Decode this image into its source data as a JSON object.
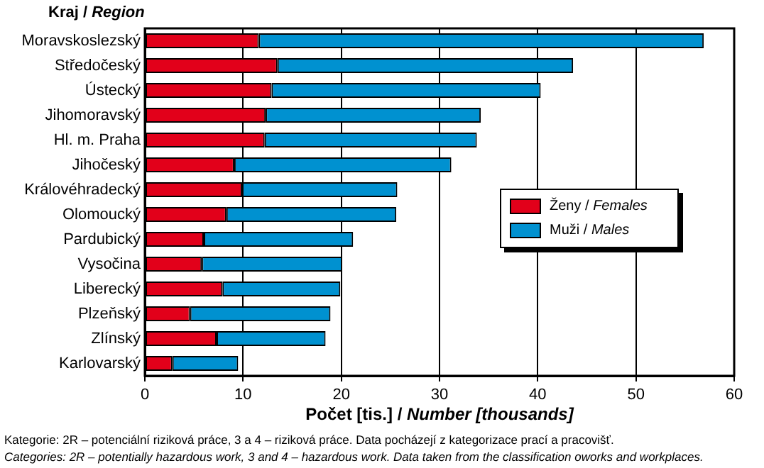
{
  "chart_data": {
    "type": "bar",
    "orientation": "horizontal",
    "stacked": true,
    "ylabel": "Kraj / Region",
    "xlabel": "Počet [tis.] / Number [thousands]",
    "categories": [
      "Moravskoslezský",
      "Středočeský",
      "Ústecký",
      "Jihomoravský",
      "Hl. m. Praha",
      "Jihočeský",
      "Královéhradecký",
      "Olomoucký",
      "Pardubický",
      "Vysočina",
      "Liberecký",
      "Plzeňský",
      "Zlínský",
      "Karlovarský"
    ],
    "series": [
      {
        "name": "Ženy / Females",
        "color": "#e2001a",
        "values": [
          11.6,
          13.5,
          12.9,
          12.3,
          12.2,
          9.1,
          9.9,
          8.3,
          6.0,
          5.8,
          7.9,
          4.6,
          7.3,
          2.8
        ]
      },
      {
        "name": "Muži / Males",
        "color": "#0091d0",
        "values": [
          45.3,
          30.1,
          27.4,
          21.9,
          21.6,
          22.1,
          15.8,
          17.3,
          15.2,
          14.3,
          12.0,
          14.3,
          11.1,
          6.7
        ]
      }
    ],
    "xlim": [
      0,
      60
    ],
    "xticks": [
      0,
      10,
      20,
      30,
      40,
      50,
      60
    ],
    "grid": "x",
    "legend": "right",
    "annotations": [
      "Kategorie: 2R – potenciální riziková práce, 3 a 4 – riziková práce. Data pocházejí z kategorizace prací a pracovišť.",
      "Categories: 2R – potentially hazardous work, 3 and 4 – hazardous work. Data taken from the classification oworks and workplaces."
    ]
  }
}
